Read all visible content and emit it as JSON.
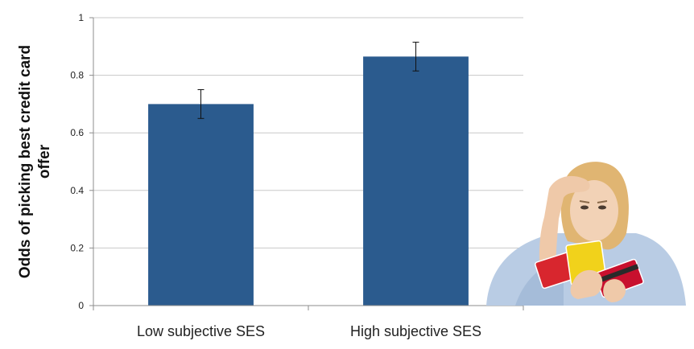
{
  "chart_data": {
    "type": "bar",
    "title": "",
    "categories": [
      "Low subjective SES",
      "High subjective SES"
    ],
    "values": [
      0.7,
      0.865
    ],
    "error": [
      0.05,
      0.05
    ],
    "ylabel_line1": "Odds of picking best credit card",
    "ylabel_line2": "offer",
    "xlabel": "",
    "ylim": [
      0,
      1
    ],
    "yticks": [
      "0",
      "0.2",
      "0.4",
      "0.6",
      "0.8",
      "1"
    ],
    "grid": true,
    "bar_color": "#2b5b8e"
  },
  "illustration": {
    "icon": "stressed-woman-with-credit-cards-icon",
    "card_colors": [
      "#d8262e",
      "#f1d21b",
      "#c8102e"
    ]
  }
}
